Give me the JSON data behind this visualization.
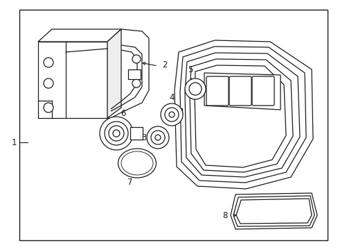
{
  "bg_color": "#ffffff",
  "line_color": "#1a1a1a",
  "border_color": "#000000",
  "label_color": "#000000",
  "fig_width": 4.89,
  "fig_height": 3.6,
  "dpi": 100
}
